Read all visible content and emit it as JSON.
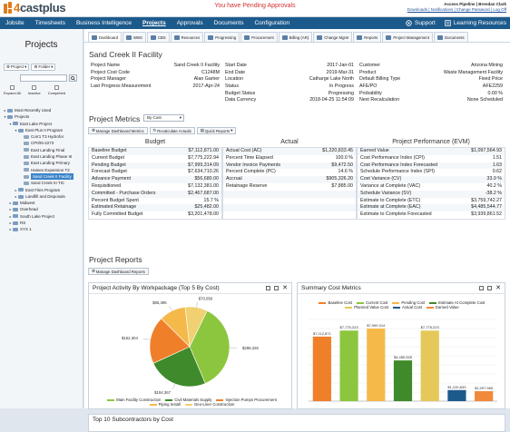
{
  "app": {
    "logo_digit": "4",
    "logo_name": "castplus"
  },
  "header": {
    "pending": "You have Pending Approvals",
    "user": "Access Pipeline | Brendan Clark",
    "links": "Downloads | Notifications | Change Password | Log Off"
  },
  "nav": {
    "items": [
      "Jobsite",
      "Timesheets",
      "Business Intelligence",
      "Projects",
      "Approvals",
      "Documents",
      "Configuration"
    ],
    "support": "Support",
    "learning": "Learning Resources"
  },
  "sidebar": {
    "title": "Projects",
    "project_btn": "Project",
    "folder_btn": "Folder",
    "checks": [
      "Expand All",
      "Inactive",
      "Completed"
    ],
    "tree": [
      {
        "label": "Most Recently Used",
        "indent": 0,
        "exp": "▸"
      },
      {
        "label": "Projects",
        "indent": 0,
        "exp": "▾"
      },
      {
        "label": "East Lake Project",
        "indent": 1,
        "exp": "▾"
      },
      {
        "label": "East Plus II Program",
        "indent": 2,
        "exp": "▾"
      },
      {
        "label": "Corr1 T3 Hydrofor",
        "indent": 3,
        "exp": ""
      },
      {
        "label": "CP0/I5-2273",
        "indent": 3,
        "exp": ""
      },
      {
        "label": "East Landing Final",
        "indent": 3,
        "exp": ""
      },
      {
        "label": "East Landing Phase III",
        "indent": 3,
        "exp": ""
      },
      {
        "label": "East Landing Primary",
        "indent": 3,
        "exp": ""
      },
      {
        "label": "Haines Expansion T2",
        "indent": 3,
        "exp": ""
      },
      {
        "label": "Sand Creek II Facility",
        "indent": 3,
        "exp": "",
        "selected": true
      },
      {
        "label": "Sand Creek III TIC",
        "indent": 3,
        "exp": ""
      },
      {
        "label": "East Files Program",
        "indent": 2,
        "exp": "▸"
      },
      {
        "label": "Landfill and Disposals",
        "indent": 2,
        "exp": "▸"
      },
      {
        "label": "Midwest",
        "indent": 1,
        "exp": "▸"
      },
      {
        "label": "Overhead",
        "indent": 1,
        "exp": "▸"
      },
      {
        "label": "South Lake Project",
        "indent": 1,
        "exp": "▸"
      },
      {
        "label": "RS",
        "indent": 1,
        "exp": "▸"
      },
      {
        "label": "XYX 1",
        "indent": 1,
        "exp": "▸"
      }
    ]
  },
  "tabs": [
    "Dashboard",
    "WBS",
    "CBS",
    "Resources",
    "Progressing",
    "Procurement",
    "Billing (AR)",
    "Change Mgmt",
    "Reports",
    "Project Management",
    "Documents"
  ],
  "project": {
    "name": "Sand Creek II Facility",
    "info": [
      [
        [
          "Project Name",
          "Sand Creek II Facility"
        ],
        [
          "Start Date",
          "2017-Jan-01"
        ],
        [
          "Customer",
          "Arizona Mining"
        ]
      ],
      [
        [
          "Project Cost Code",
          "C1248M"
        ],
        [
          "End Date",
          "2019-Mar-31"
        ],
        [
          "Product",
          "Waste Management Facility"
        ]
      ],
      [
        [
          "Project Manager",
          "Alan Gamer"
        ],
        [
          "Location",
          "Catharge Lake North"
        ],
        [
          "Default Billing Type",
          "Fixed Price"
        ]
      ],
      [
        [
          "Last Progress Measurement",
          "2017-Apr-24"
        ],
        [
          "Status",
          "In Progress"
        ],
        [
          "AFE/PO",
          "AFE2259"
        ]
      ],
      [
        [
          "",
          ""
        ],
        [
          "Budget Status",
          "Progressing"
        ],
        [
          "Probability",
          "0.00 %"
        ]
      ],
      [
        [
          "",
          ""
        ],
        [
          "Data Currency",
          "2018-04-25 11:54:09"
        ],
        [
          "Next Recalculation",
          "None Scheduled"
        ]
      ]
    ]
  },
  "metrics": {
    "title": "Project Metrics",
    "select": "By Cost",
    "tools": [
      "Manage Dashboard Metrics",
      "Recalculate Actuals",
      "Quick Reports"
    ],
    "headers": [
      "Budget",
      "Actual",
      "Project Performance (EVM)"
    ],
    "budget": [
      [
        "Baseline Budget",
        "$7,112,871.00"
      ],
      [
        "Current Budget",
        "$7,775,222.94"
      ],
      [
        "Pending Budget",
        "$7,999,314.09"
      ],
      [
        "Forecast Budget",
        "$7,634,710.26"
      ],
      [
        "Advance Payment",
        "$56,680.00"
      ],
      [
        "Requisitioned",
        "$7,132,381.00"
      ],
      [
        "Committed - Purchase Orders",
        "$2,467,687.00"
      ],
      [
        "Percent Budget Spent",
        "15.7 %"
      ],
      [
        "Estimated Retainage",
        "$25,482.00"
      ],
      [
        "Fully Committed Budget",
        "$3,201,478.00"
      ]
    ],
    "actual": [
      [
        "Actual Cost (AC)",
        "$1,220,833.45"
      ],
      [
        "Percent Time Elapsed",
        "100.0 %"
      ],
      [
        "Vendor Invoice Payments",
        "$9,472.50"
      ],
      [
        "Percent Complete (PC)",
        "14.6 %"
      ],
      [
        "Accrual",
        "$905,326.20"
      ],
      [
        "Retainage Reserve",
        "$7,885.00"
      ]
    ],
    "evm": [
      [
        "Earned Value",
        "$1,097,564.93"
      ],
      [
        "Cost Performance Index (CPI)",
        "1.51"
      ],
      [
        "Cost Performance Index Forecasted",
        "1.63"
      ],
      [
        "Schedule Performance Index (SPI)",
        "0.62"
      ],
      [
        "Cost Variance (CV)",
        "33.9 %"
      ],
      [
        "Variance at Complete (VAC)",
        "40.2 %"
      ],
      [
        "Schedule Variance (SV)",
        "-38.2 %"
      ],
      [
        "Estimate to Complete (ETC)",
        "$3,759,742.27"
      ],
      [
        "Estimate at Complete (EAC)",
        "$4,485,544.77"
      ],
      [
        "Estimate to Complete Forecasted",
        "$3,939,861.52"
      ]
    ]
  },
  "reports": {
    "title": "Project Reports",
    "tool": "Manage Dashboard Reports",
    "subcontractors_title": "Top 10 Subcontractors by Cost"
  },
  "chart_data": [
    {
      "type": "pie",
      "title": "Project Activity By Workpackage (Top 5 By Cost)",
      "categories": [
        "Main Facility Construction",
        "Civil Materials Supply",
        "Injection Pumps Procurement",
        "Piping Install",
        "Geo-Liner Construction"
      ],
      "values": [
        288326,
        194367,
        152304,
        85396,
        70856
      ],
      "data_labels": [
        "$288,326",
        "$194,367",
        "$152,304",
        "$85,396",
        "$70,856"
      ],
      "colors": [
        "#8cc63f",
        "#3f8a2a",
        "#f07f2a",
        "#f5b94a",
        "#f0d070"
      ]
    },
    {
      "type": "bar",
      "title": "Summary Cost Metrics",
      "categories": [
        "Baseline Cost",
        "Current Cost",
        "Pending Cost",
        "Estimate At Complete Cost",
        "Planned Value Cost",
        "Actual Cost",
        "Earned Value"
      ],
      "values": [
        7112871,
        7775223,
        7999314,
        4485545,
        7775223,
        1220833,
        1097565
      ],
      "data_labels": [
        "$7,112,871",
        "$7,775,223",
        "$7,999,314",
        "$4,485,545",
        "$7,775,223",
        "$1,220,833",
        "$1,097,565"
      ],
      "colors": [
        "#f07f2a",
        "#8cc63f",
        "#f5b94a",
        "#3f8a2a",
        "#e6c85a",
        "#1d5a8c",
        "#f08a3a"
      ],
      "ylim": [
        0,
        9000000
      ],
      "grid": true,
      "legend": "top"
    }
  ]
}
